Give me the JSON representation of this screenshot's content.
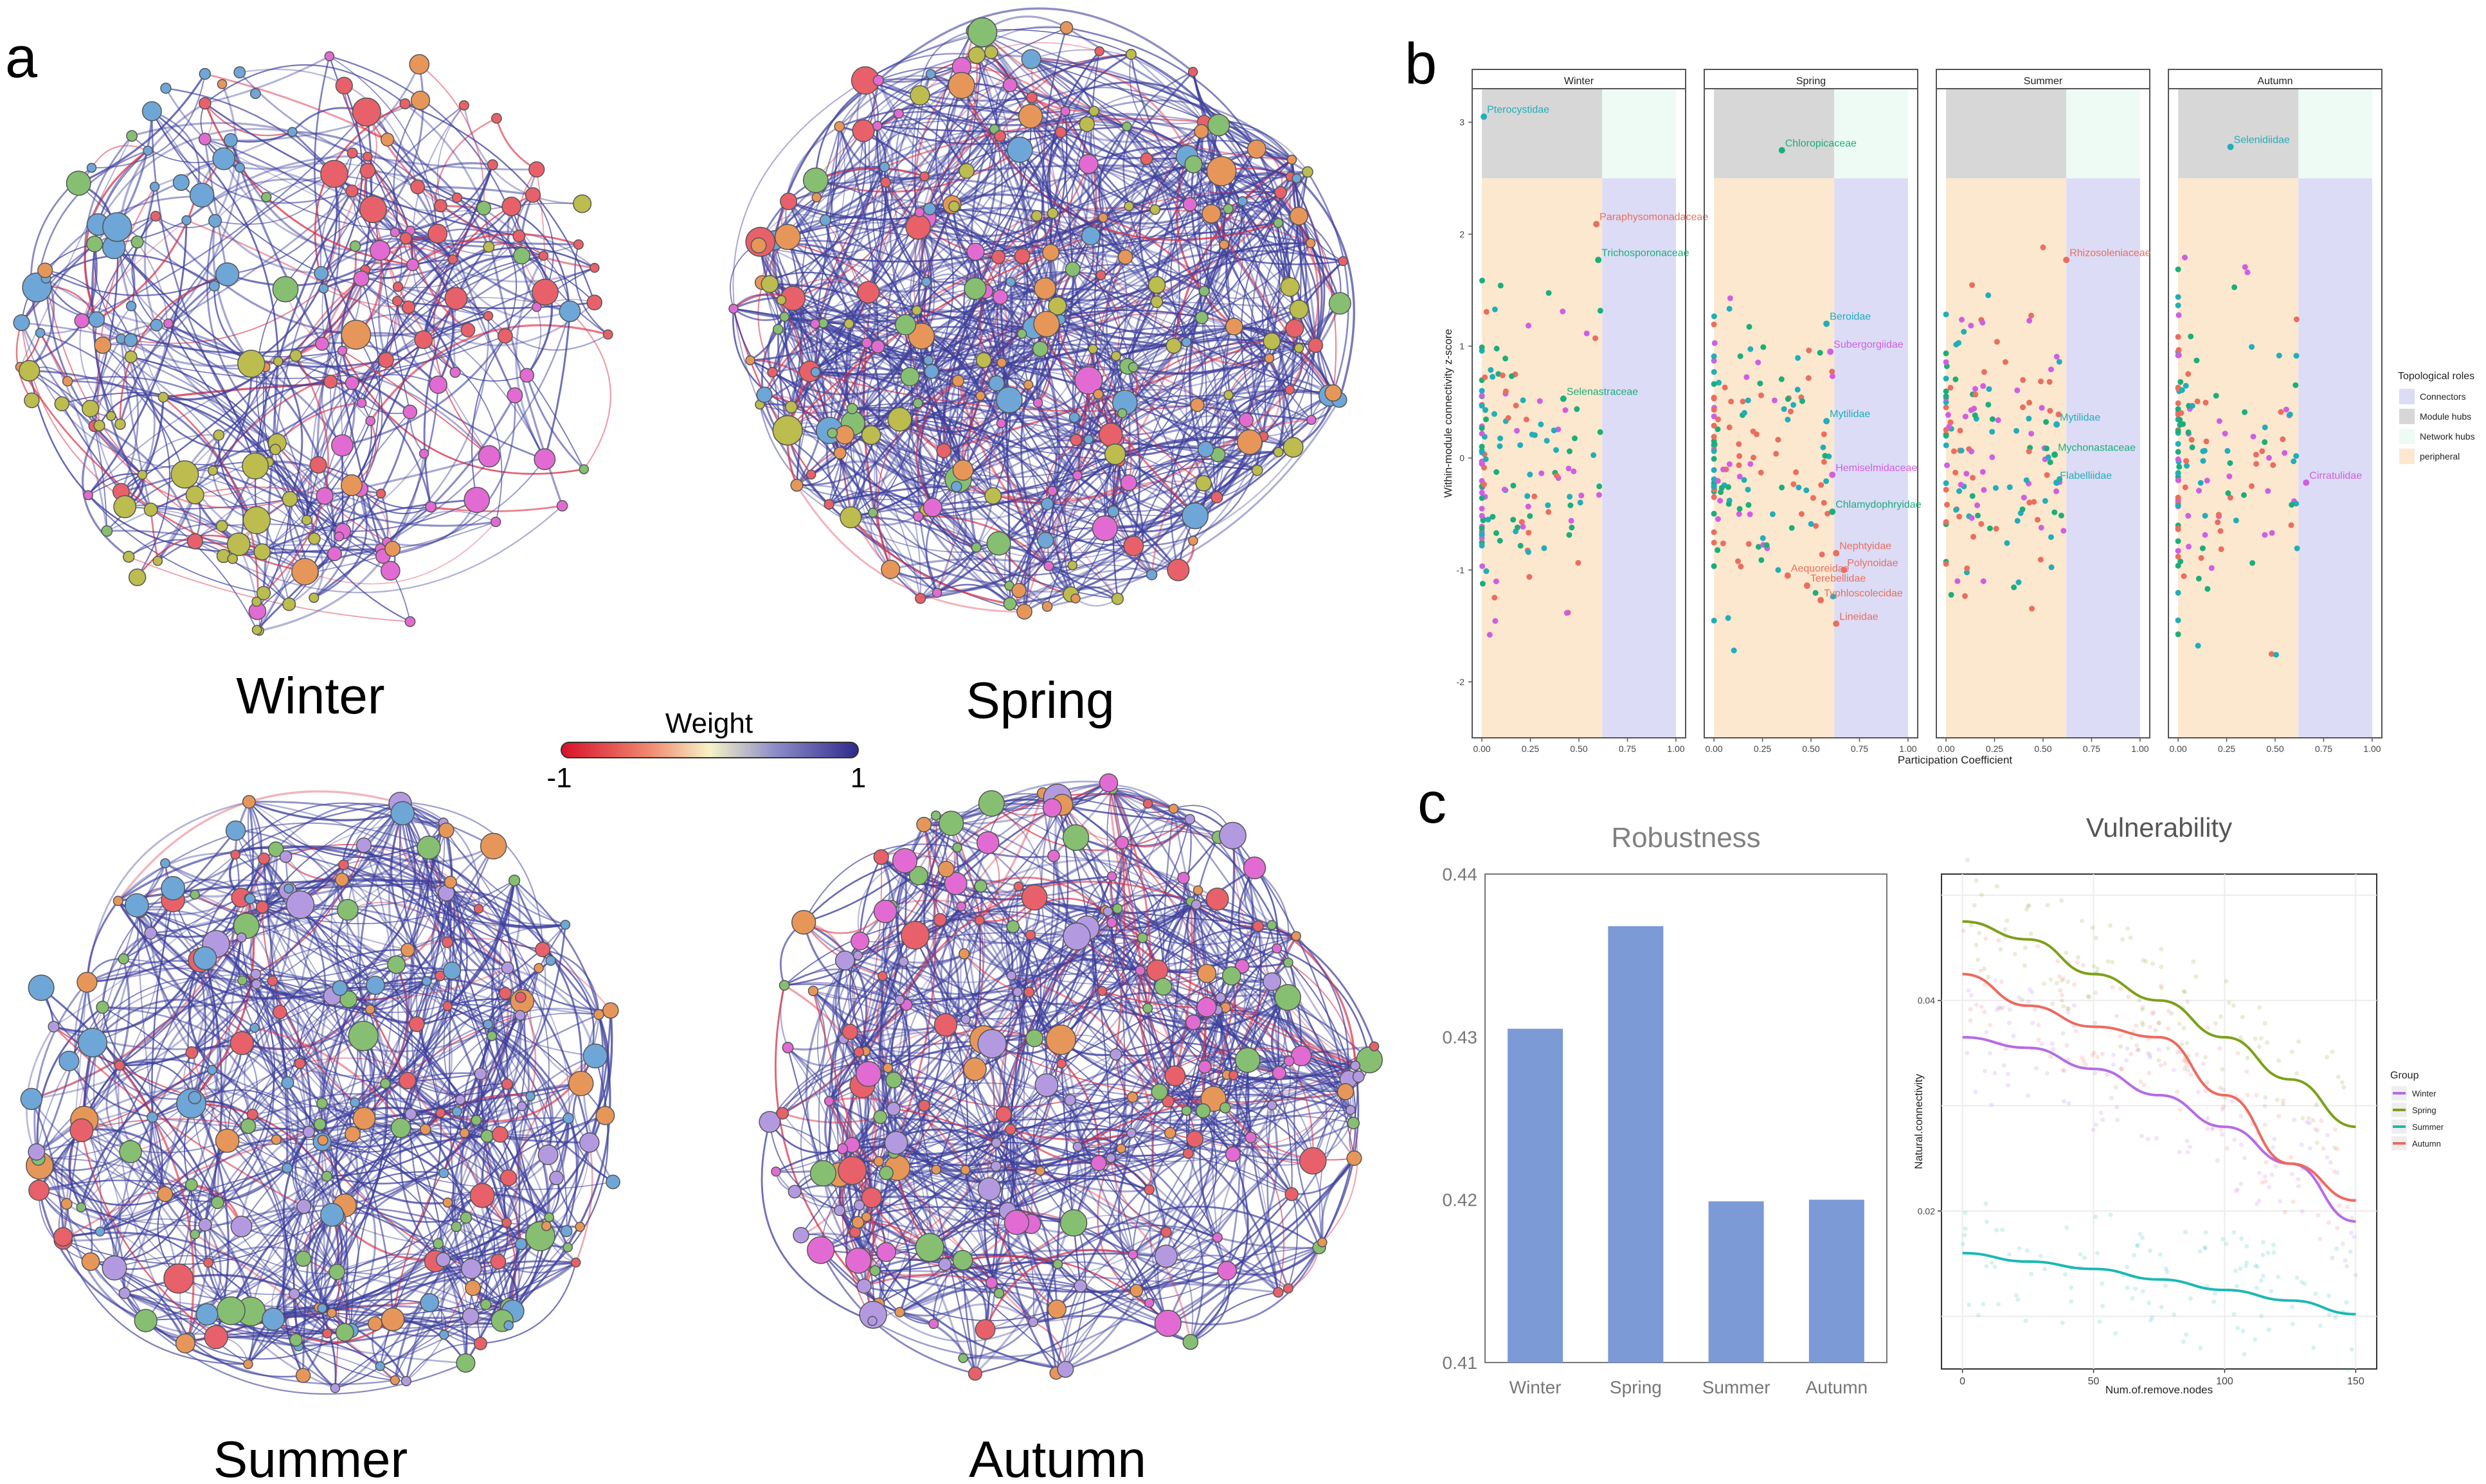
{
  "panel_labels": {
    "a": "a",
    "b": "b",
    "c": "c"
  },
  "colors": {
    "winter": "#b56be6",
    "spring": "#7ca01a",
    "summer": "#1bb8b5",
    "autumn": "#ec6a5e",
    "bar": "#7b9ad6",
    "edge_positive": "#3d3f9c",
    "edge_negative": "#d9344b",
    "connectors": "#dcdcf6",
    "module_hubs": "#d7d7d7",
    "network_hubs": "#eefbf4",
    "peripheral": "#fbe8cf",
    "node_red": "#e8616a",
    "node_blue": "#6ea6d8",
    "node_green": "#86bf72",
    "node_olive": "#bcbc4f",
    "node_purple": "#b39ae0",
    "node_orange": "#e7965a",
    "node_pink": "#e26bd3",
    "label_green": "#1bae7a",
    "label_teal": "#21aeb9",
    "label_red": "#ea6e5e",
    "label_magenta": "#cf5fe0"
  },
  "networks": {
    "winter": {
      "label": "Winter"
    },
    "spring": {
      "label": "Spring"
    },
    "summer": {
      "label": "Summer"
    },
    "autumn": {
      "label": "Autumn"
    }
  },
  "weight_legend": {
    "title": "Weight",
    "min_label": "-1",
    "max_label": "1"
  },
  "chart_data": [
    {
      "type": "scatter",
      "panel": "b",
      "xlabel": "Participation Coefficient",
      "ylabel": "Within-module connectivity z-score",
      "xlim": [
        0,
        1
      ],
      "ylim": [
        -2.5,
        3.3
      ],
      "xticks": [
        "0.00",
        "0.25",
        "0.50",
        "0.75",
        "1.00"
      ],
      "yticks": [
        "-2",
        "-1",
        "0",
        "1",
        "2",
        "3"
      ],
      "role_thresholds": {
        "pc": 0.62,
        "zi": 2.5
      },
      "legend": {
        "title": "Topological roles",
        "items": [
          {
            "label": "Connectors",
            "color": "#dcdcf6"
          },
          {
            "label": "Module hubs",
            "color": "#d7d7d7"
          },
          {
            "label": "Network hubs",
            "color": "#eefbf4"
          },
          {
            "label": "peripheral",
            "color": "#fbe8cf"
          }
        ]
      },
      "facets": [
        {
          "name": "Winter",
          "labels": [
            {
              "text": "Pterocystidae",
              "x": 0.01,
              "y": 3.05,
              "color": "teal"
            },
            {
              "text": "Paraphysomonadaceae",
              "x": 0.59,
              "y": 2.09,
              "color": "red"
            },
            {
              "text": "Trichosporonaceae",
              "x": 0.6,
              "y": 1.77,
              "color": "green"
            },
            {
              "text": "Selenastraceae",
              "x": 0.42,
              "y": 0.53,
              "color": "green"
            }
          ]
        },
        {
          "name": "Spring",
          "labels": [
            {
              "text": "Chloropicaceae",
              "x": 0.35,
              "y": 2.75,
              "color": "green"
            },
            {
              "text": "Beroidae",
              "x": 0.58,
              "y": 1.2,
              "color": "teal"
            },
            {
              "text": "Subergorgiidae",
              "x": 0.6,
              "y": 0.95,
              "color": "magenta"
            },
            {
              "text": "Mytilidae",
              "x": 0.58,
              "y": 0.33,
              "color": "teal"
            },
            {
              "text": "Hemiselmidaceae",
              "x": 0.61,
              "y": -0.15,
              "color": "magenta"
            },
            {
              "text": "Chlamydophryidae",
              "x": 0.61,
              "y": -0.48,
              "color": "green"
            },
            {
              "text": "Nephtyidae",
              "x": 0.63,
              "y": -0.85,
              "color": "red"
            },
            {
              "text": "Polynoidae",
              "x": 0.67,
              "y": -1.0,
              "color": "red"
            },
            {
              "text": "Aequoreidae",
              "x": 0.38,
              "y": -1.05,
              "color": "red"
            },
            {
              "text": "Terebellidae",
              "x": 0.48,
              "y": -1.14,
              "color": "red"
            },
            {
              "text": "Typhloscolecidae",
              "x": 0.55,
              "y": -1.27,
              "color": "red"
            },
            {
              "text": "Lineidae",
              "x": 0.63,
              "y": -1.48,
              "color": "red"
            }
          ]
        },
        {
          "name": "Summer",
          "labels": [
            {
              "text": "Rhizosoleniaceae",
              "x": 0.62,
              "y": 1.77,
              "color": "red"
            },
            {
              "text": "Mytilidae",
              "x": 0.57,
              "y": 0.3,
              "color": "teal"
            },
            {
              "text": "Mychonastaceae",
              "x": 0.56,
              "y": 0.03,
              "color": "green"
            },
            {
              "text": "Flabelliidae",
              "x": 0.57,
              "y": -0.22,
              "color": "teal"
            }
          ]
        },
        {
          "name": "Autumn",
          "labels": [
            {
              "text": "Selenidiidae",
              "x": 0.27,
              "y": 2.78,
              "color": "teal"
            },
            {
              "text": "Cirratulidae",
              "x": 0.66,
              "y": -0.22,
              "color": "magenta"
            }
          ]
        }
      ]
    },
    {
      "type": "bar",
      "panel": "c",
      "title": "Robustness",
      "categories": [
        "Winter",
        "Spring",
        "Summer",
        "Autumn"
      ],
      "values": [
        0.4305,
        0.4368,
        0.4199,
        0.42
      ],
      "ylim": [
        0.41,
        0.44
      ],
      "yticks": [
        "0.41",
        "0.42",
        "0.43",
        "0.44"
      ]
    },
    {
      "type": "line",
      "panel": "c",
      "title": "Vulnerability",
      "xlabel": "Num.of.remove.nodes",
      "ylabel": "Natural.connectivity",
      "xlim": [
        -8,
        158
      ],
      "ylim": [
        0.005,
        0.052
      ],
      "xticks": [
        "0",
        "50",
        "100",
        "150"
      ],
      "yticks": [
        "0.02",
        "0.04"
      ],
      "legend_title": "Group",
      "series": [
        {
          "name": "Winter",
          "color": "#b56be6",
          "x": [
            0,
            25,
            50,
            75,
            100,
            125,
            150
          ],
          "y": [
            0.0365,
            0.0355,
            0.0335,
            0.031,
            0.028,
            0.0245,
            0.019
          ]
        },
        {
          "name": "Spring",
          "color": "#7ca01a",
          "x": [
            0,
            25,
            50,
            75,
            100,
            125,
            150
          ],
          "y": [
            0.0475,
            0.0458,
            0.0425,
            0.04,
            0.0365,
            0.0325,
            0.028
          ]
        },
        {
          "name": "Summer",
          "color": "#1bb8b5",
          "x": [
            0,
            25,
            50,
            75,
            100,
            125,
            150
          ],
          "y": [
            0.016,
            0.0152,
            0.0145,
            0.0135,
            0.0125,
            0.0115,
            0.0102
          ]
        },
        {
          "name": "Autumn",
          "color": "#ec6a5e",
          "x": [
            0,
            25,
            50,
            75,
            100,
            125,
            150
          ],
          "y": [
            0.0425,
            0.0395,
            0.0375,
            0.0365,
            0.031,
            0.0245,
            0.021
          ]
        }
      ]
    }
  ]
}
